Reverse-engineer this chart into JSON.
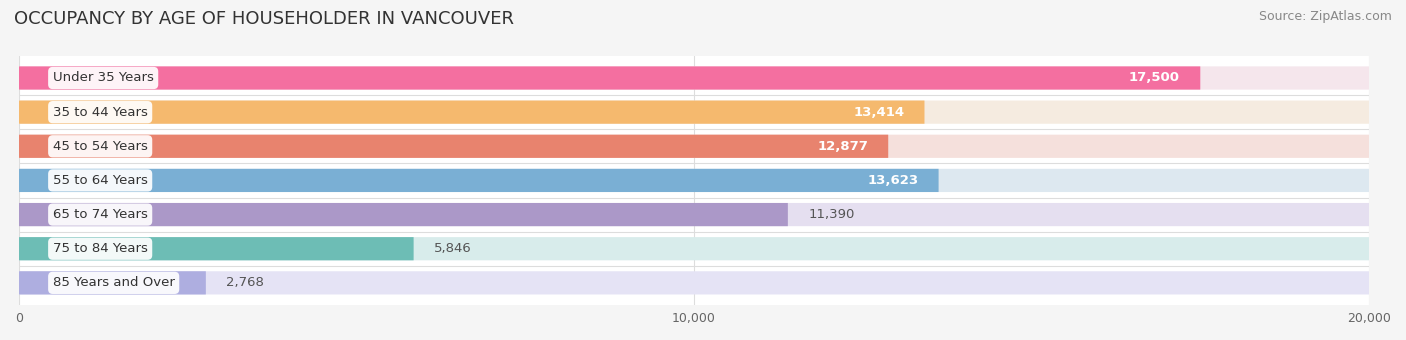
{
  "title": "OCCUPANCY BY AGE OF HOUSEHOLDER IN VANCOUVER",
  "source": "Source: ZipAtlas.com",
  "categories": [
    "Under 35 Years",
    "35 to 44 Years",
    "45 to 54 Years",
    "55 to 64 Years",
    "65 to 74 Years",
    "75 to 84 Years",
    "85 Years and Over"
  ],
  "values": [
    17500,
    13414,
    12877,
    13623,
    11390,
    5846,
    2768
  ],
  "bar_colors": [
    "#F46FA0",
    "#F5B96E",
    "#E8836E",
    "#7AAFD4",
    "#AB98C8",
    "#6DBDB5",
    "#AEAEE0"
  ],
  "bar_bg_colors": [
    "#F5E6EC",
    "#F5EBE0",
    "#F5E0DC",
    "#DDE8F0",
    "#E5DFF0",
    "#D8ECEB",
    "#E5E3F5"
  ],
  "value_inside_color": "white",
  "value_outside_color": "#555555",
  "value_threshold": 12000,
  "label_text_color": "#333333",
  "label_bg_color": "white",
  "xlim": [
    0,
    20000
  ],
  "xticks": [
    0,
    10000,
    20000
  ],
  "xtick_labels": [
    "0",
    "10,000",
    "20,000"
  ],
  "title_fontsize": 13,
  "source_fontsize": 9,
  "label_fontsize": 9.5,
  "value_fontsize": 9.5,
  "bar_height": 0.68,
  "background_color": "#f5f5f5",
  "plot_bg_color": "#ffffff",
  "grid_color": "#dddddd"
}
